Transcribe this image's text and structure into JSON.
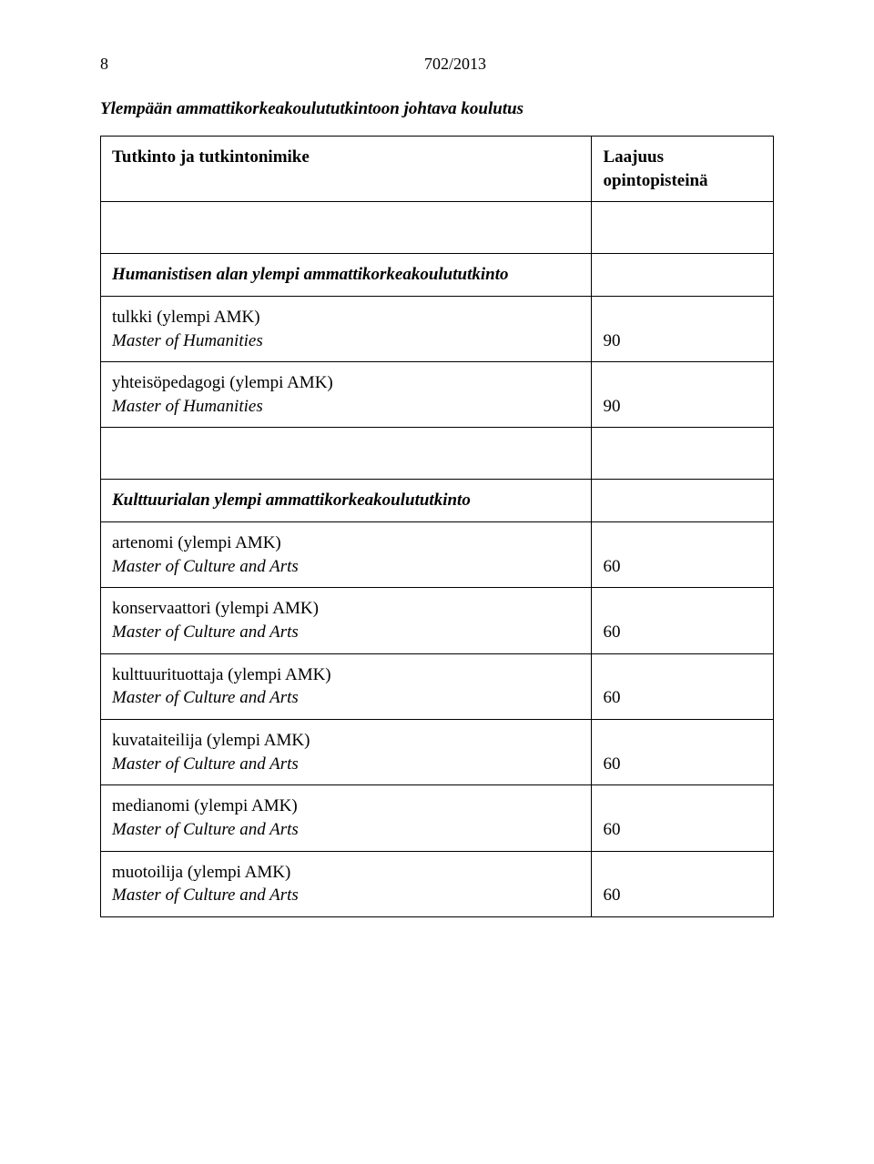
{
  "header": {
    "pageNumber": "8",
    "docRef": "702/2013"
  },
  "sectionTitle": "Ylempään ammattikorkeakoulututkintoon johtava koulutus",
  "tableHeader": {
    "left": "Tutkinto ja tutkintonimike",
    "right": "Laajuus opintopisteinä"
  },
  "group1": {
    "title": "Humanistisen alan ylempi ammattikorkeakoulututkinto",
    "r1_line1": "tulkki (ylempi AMK)",
    "r1_line2": "Master of Humanities",
    "r1_val": "90",
    "r2_line1": "yhteisöpedagogi (ylempi AMK)",
    "r2_line2": "Master of Humanities",
    "r2_val": "90"
  },
  "group2": {
    "title": "Kulttuurialan ylempi ammattikorkeakoulututkinto",
    "r1_line1": "artenomi (ylempi AMK)",
    "r1_line2": "Master of Culture and Arts",
    "r1_val": "60",
    "r2_line1": "konservaattori (ylempi AMK)",
    "r2_line2": "Master of Culture and Arts",
    "r2_val": "60",
    "r3_line1": "kulttuurituottaja (ylempi AMK)",
    "r3_line2": "Master of Culture and Arts",
    "r3_val": "60",
    "r4_line1": "kuvataiteilija (ylempi AMK)",
    "r4_line2": "Master of Culture and Arts",
    "r4_val": "60",
    "r5_line1": "medianomi (ylempi AMK)",
    "r5_line2": "Master of Culture and Arts",
    "r5_val": "60",
    "r6_line1": "muotoilija (ylempi AMK)",
    "r6_line2": "Master of Culture and Arts",
    "r6_val": "60"
  }
}
